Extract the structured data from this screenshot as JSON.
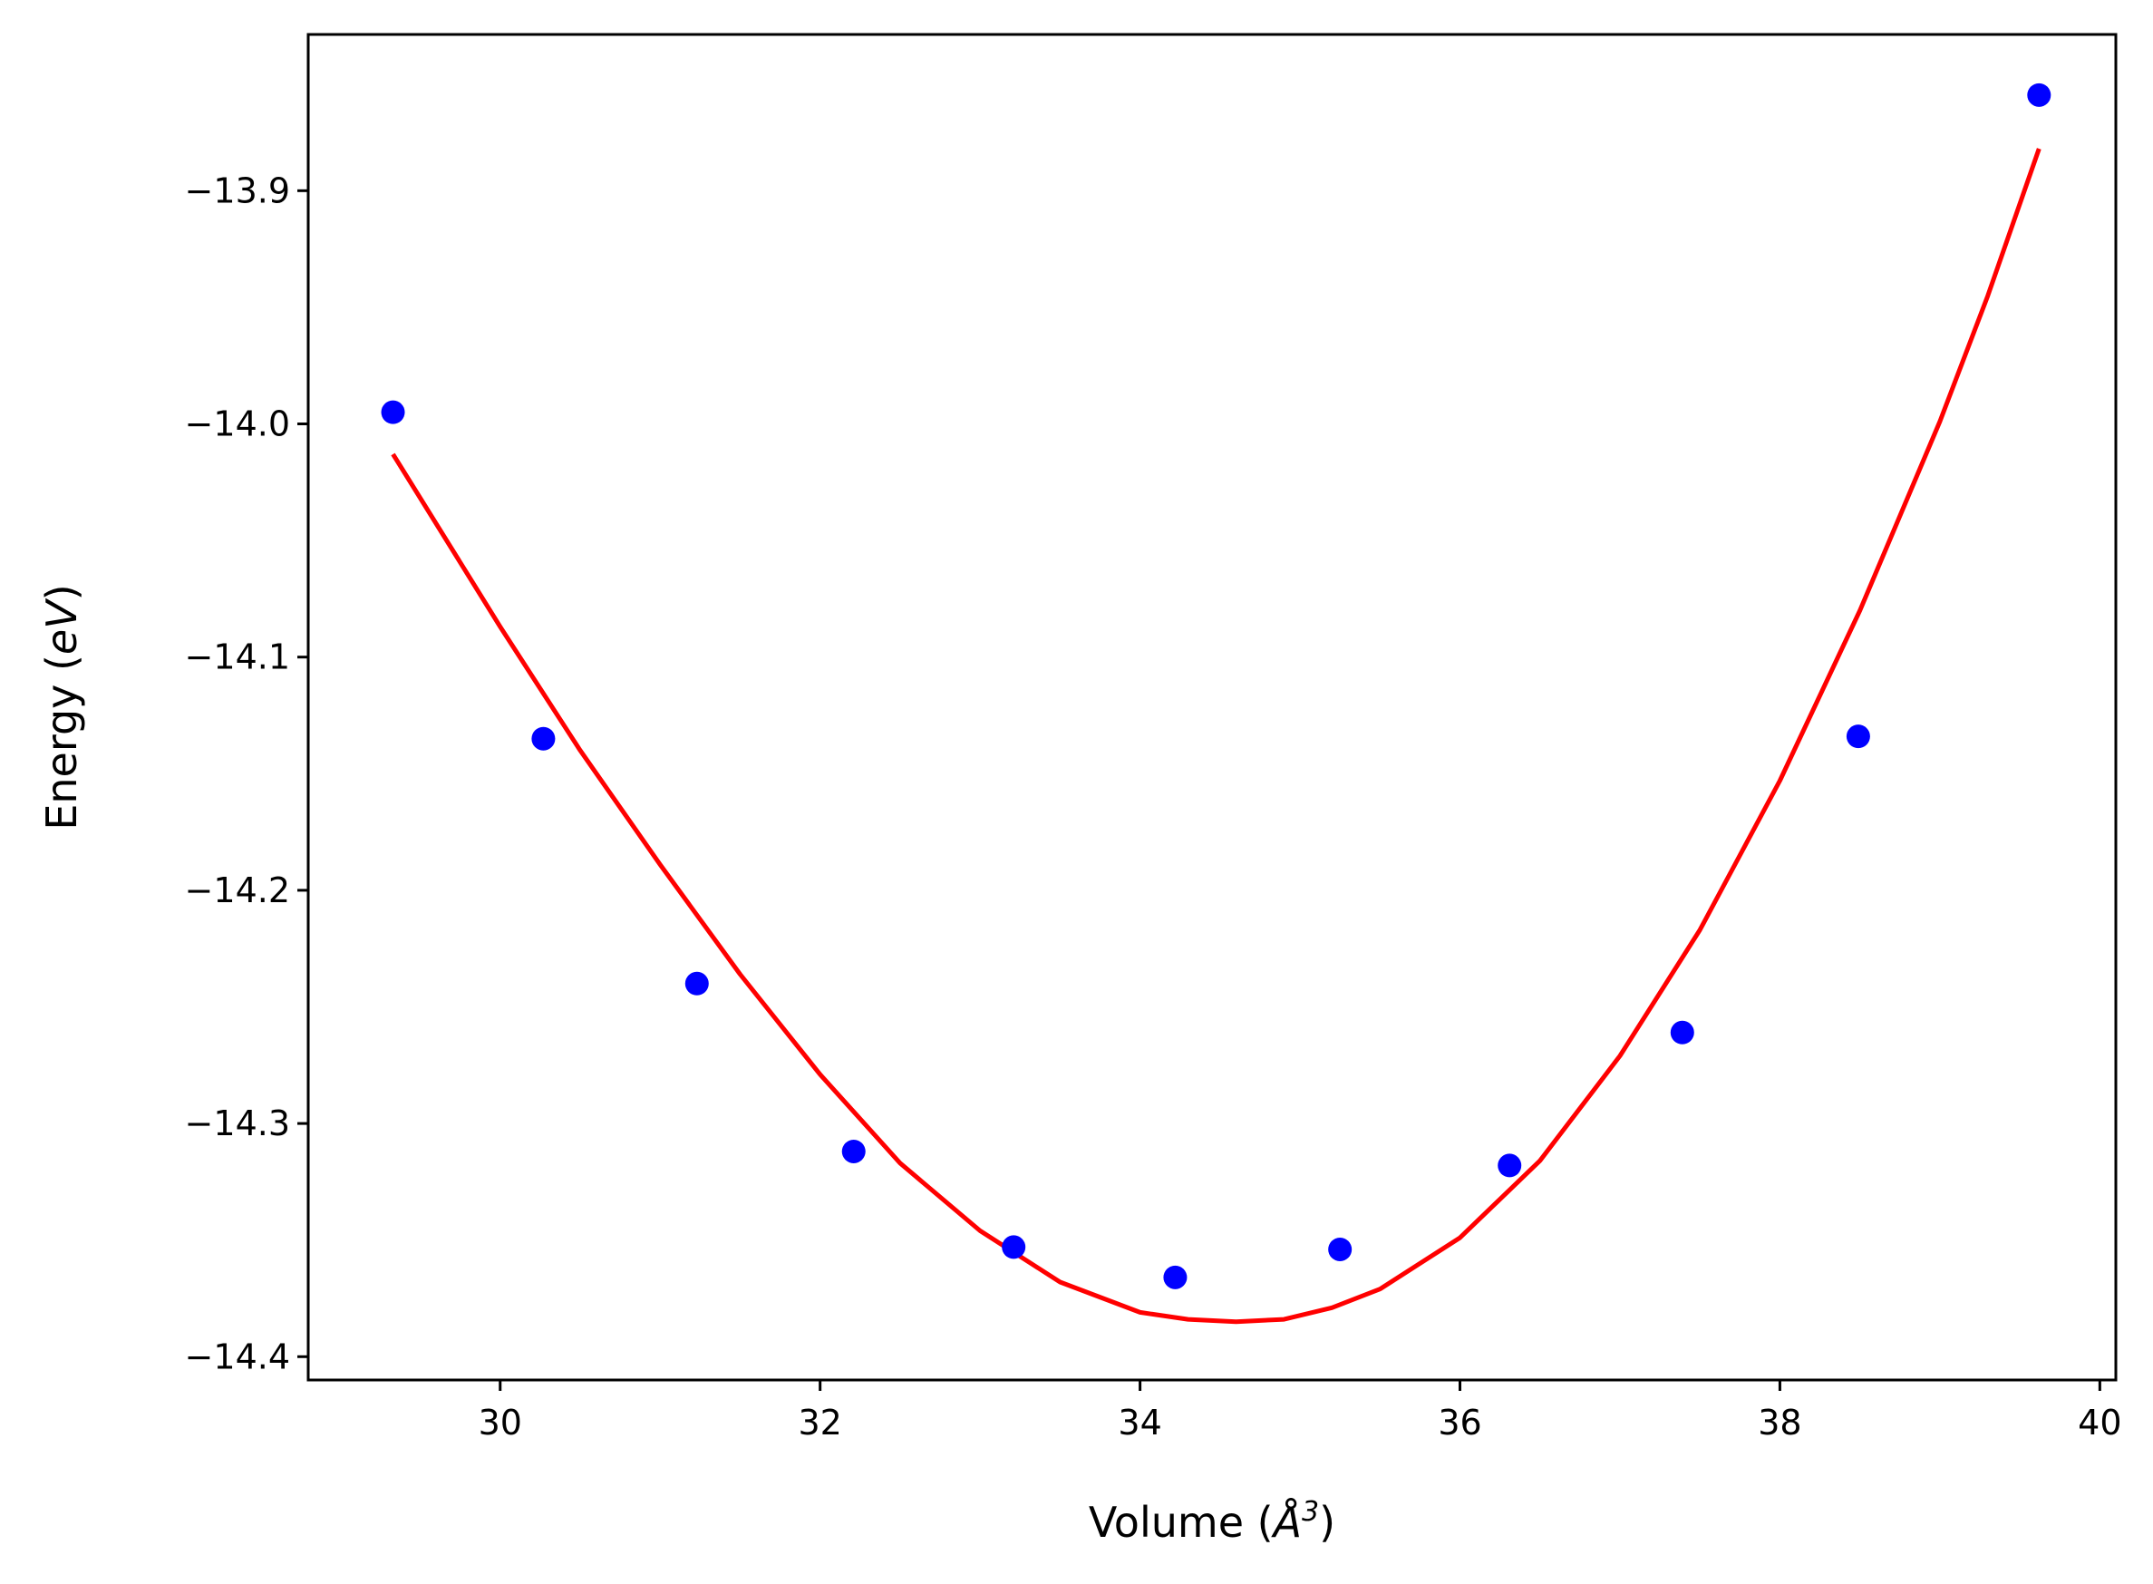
{
  "chart_data": {
    "type": "scatter",
    "title": "",
    "xlabel": {
      "main": "Volume (",
      "symbol": "Å",
      "exponent": "3",
      "close": ")"
    },
    "ylabel": {
      "main": "Energy (",
      "unit": "eV",
      "close": ")"
    },
    "xlim": [
      28.8,
      40.1
    ],
    "ylim": [
      -14.41,
      -13.833
    ],
    "x_ticks": [
      30,
      32,
      34,
      36,
      38,
      40
    ],
    "x_tick_labels": [
      "30",
      "32",
      "34",
      "36",
      "38",
      "40"
    ],
    "y_ticks": [
      -13.9,
      -14.0,
      -14.1,
      -14.2,
      -14.3,
      -14.4
    ],
    "y_tick_labels": [
      "−13.9",
      "−14.0",
      "−14.1",
      "−14.2",
      "−14.3",
      "−14.4"
    ],
    "grid": false,
    "series": [
      {
        "kind": "points",
        "color": "#0000ff",
        "x": [
          29.33,
          30.27,
          31.23,
          32.21,
          33.21,
          34.22,
          35.25,
          36.31,
          37.39,
          38.49,
          39.62
        ],
        "y": [
          -13.995,
          -14.135,
          -14.24,
          -14.312,
          -14.353,
          -14.366,
          -14.354,
          -14.318,
          -14.261,
          -14.134,
          -13.859
        ]
      },
      {
        "kind": "fit-curve",
        "color": "#ff0000",
        "x": [
          29.33,
          30.0,
          30.5,
          31.0,
          31.5,
          32.0,
          32.5,
          33.0,
          33.5,
          34.0,
          34.3,
          34.6,
          34.9,
          35.2,
          35.5,
          36.0,
          36.5,
          37.0,
          37.5,
          38.0,
          38.5,
          39.0,
          39.3,
          39.62
        ],
        "y": [
          -14.013,
          -14.087,
          -14.14,
          -14.189,
          -14.236,
          -14.279,
          -14.317,
          -14.346,
          -14.368,
          -14.381,
          -14.384,
          -14.385,
          -14.384,
          -14.379,
          -14.371,
          -14.349,
          -14.316,
          -14.271,
          -14.217,
          -14.153,
          -14.08,
          -13.999,
          -13.945,
          -13.882
        ]
      }
    ]
  }
}
